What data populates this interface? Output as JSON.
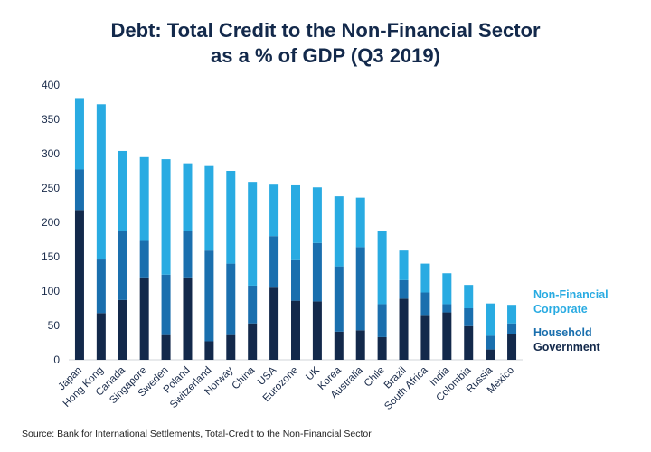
{
  "chart_data": {
    "type": "bar",
    "stacked": true,
    "title_line1": "Debt: Total Credit to the Non-Financial Sector",
    "title_line2": "as a % of GDP (Q3 2019)",
    "source": "Source: Bank for International Settlements, Total-Credit to the Non-Financial Sector",
    "categories": [
      "Japan",
      "Hong Kong",
      "Canada",
      "Singapore",
      "Sweden",
      "Poland",
      "Switzerland",
      "Norway",
      "China",
      "USA",
      "Eurozone",
      "UK",
      "Korea",
      "Australia",
      "Chile",
      "Brazil",
      "South Africa",
      "India",
      "Colombia",
      "Russia",
      "Mexico"
    ],
    "series": [
      {
        "name": "Government",
        "color": "#13294b",
        "values": [
          218,
          68,
          87,
          120,
          36,
          120,
          27,
          36,
          53,
          105,
          86,
          85,
          41,
          43,
          33,
          89,
          64,
          69,
          49,
          15,
          37
        ]
      },
      {
        "name": "Household",
        "color": "#1a6fae",
        "values": [
          59,
          78,
          101,
          53,
          88,
          67,
          132,
          104,
          55,
          75,
          59,
          85,
          95,
          121,
          48,
          27,
          34,
          12,
          26,
          20,
          16
        ]
      },
      {
        "name": "Non-Financial Corporate",
        "color": "#29abe2",
        "values": [
          104,
          226,
          116,
          122,
          168,
          99,
          123,
          135,
          151,
          75,
          109,
          81,
          102,
          72,
          107,
          43,
          42,
          45,
          34,
          47,
          27
        ]
      }
    ],
    "yticks": [
      0,
      50,
      100,
      150,
      200,
      250,
      300,
      350,
      400
    ],
    "ylim": [
      0,
      400
    ],
    "grid": false,
    "legend_position": "right"
  }
}
